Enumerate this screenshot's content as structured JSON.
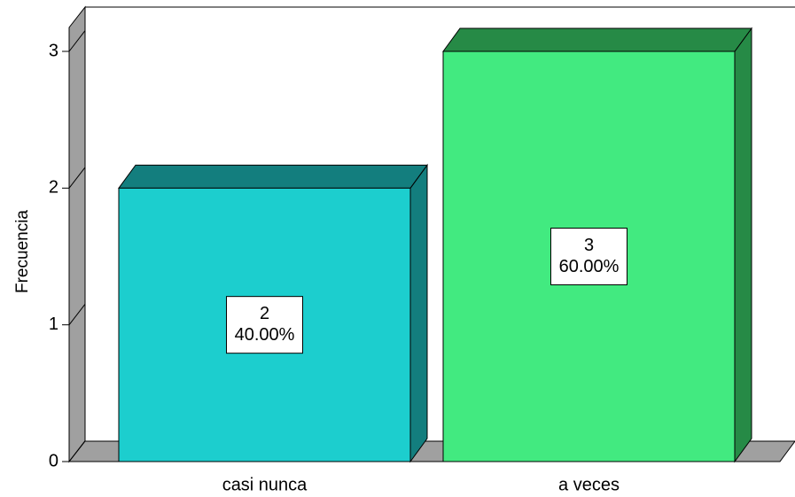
{
  "chart_data": {
    "type": "bar3d",
    "y_label": "Frecuencia",
    "categories": [
      "casi nunca",
      "a veces"
    ],
    "values": [
      2,
      3
    ],
    "percentages": [
      40,
      60
    ],
    "percentage_labels": [
      "40.00%",
      "60.00%"
    ],
    "colors": [
      "#1ccece",
      "#42ea80"
    ],
    "side_colors": [
      "#137e7e",
      "#268a46"
    ],
    "ylim": [
      0,
      3
    ],
    "yticks": [
      0,
      1,
      2,
      3
    ],
    "grid": false
  }
}
